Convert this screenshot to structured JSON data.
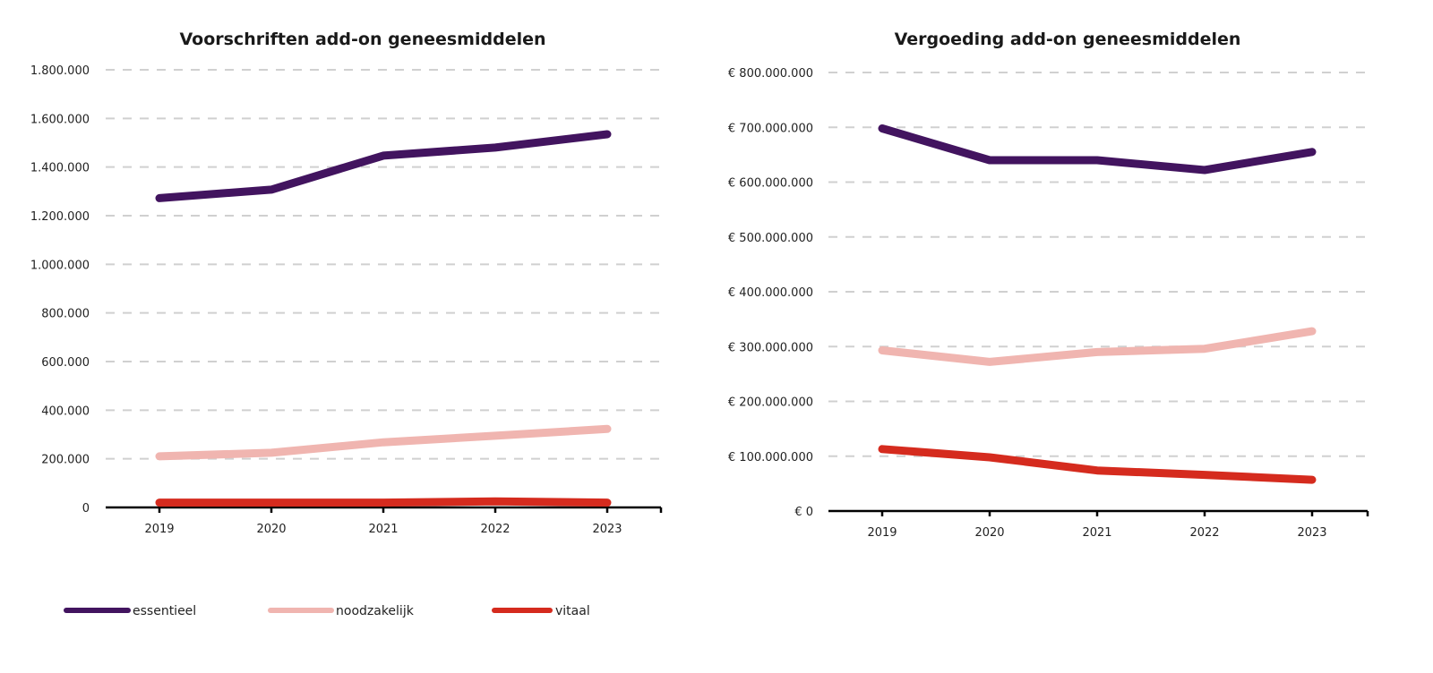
{
  "chart_data": [
    {
      "type": "line",
      "title": "Voorschriften add-on geneesmiddelen",
      "xlabel": "",
      "ylabel": "",
      "categories": [
        "2019",
        "2020",
        "2021",
        "2022",
        "2023"
      ],
      "ylim": [
        0,
        1800000
      ],
      "yticks": [
        0,
        200000,
        400000,
        600000,
        800000,
        1000000,
        1200000,
        1400000,
        1600000,
        1800000
      ],
      "ytick_labels": [
        "0",
        "200.000",
        "400.000",
        "600.000",
        "800.000",
        "1.000.000",
        "1.200.000",
        "1.400.000",
        "1.600.000",
        "1.800.000"
      ],
      "grid": true,
      "series": [
        {
          "name": "essentieel",
          "color": "#42145f",
          "values": [
            1272000,
            1307000,
            1447000,
            1480000,
            1535000
          ]
        },
        {
          "name": "noodzakelijk",
          "color": "#f0b5b0",
          "values": [
            210000,
            225000,
            268000,
            295000,
            323000
          ]
        },
        {
          "name": "vitaal",
          "color": "#d52b1e",
          "values": [
            20000,
            20000,
            20000,
            25000,
            20000
          ]
        }
      ]
    },
    {
      "type": "line",
      "title": "Vergoeding add-on geneesmiddelen",
      "xlabel": "",
      "ylabel": "",
      "categories": [
        "2019",
        "2020",
        "2021",
        "2022",
        "2023"
      ],
      "ylim": [
        0,
        800000000
      ],
      "yticks": [
        0,
        100000000,
        200000000,
        300000000,
        400000000,
        500000000,
        600000000,
        700000000,
        800000000
      ],
      "ytick_labels": [
        "€ 0",
        "€ 100.000.000",
        "€ 200.000.000",
        "€ 300.000.000",
        "€ 400.000.000",
        "€ 500.000.000",
        "€ 600.000.000",
        "€ 700.000.000",
        "€ 800.000.000"
      ],
      "grid": true,
      "series": [
        {
          "name": "essentieel",
          "color": "#42145f",
          "values": [
            698000000,
            640000000,
            640000000,
            622000000,
            655000000
          ]
        },
        {
          "name": "noodzakelijk",
          "color": "#f0b5b0",
          "values": [
            293000000,
            272000000,
            290000000,
            296000000,
            328000000
          ]
        },
        {
          "name": "vitaal",
          "color": "#d52b1e",
          "values": [
            113000000,
            98000000,
            74000000,
            66000000,
            57000000
          ]
        }
      ]
    }
  ],
  "legend": {
    "placement": "bottom-left",
    "items": [
      {
        "label": "essentieel",
        "color": "#42145f"
      },
      {
        "label": "noodzakelijk",
        "color": "#f0b5b0"
      },
      {
        "label": "vitaal",
        "color": "#d52b1e"
      }
    ]
  }
}
